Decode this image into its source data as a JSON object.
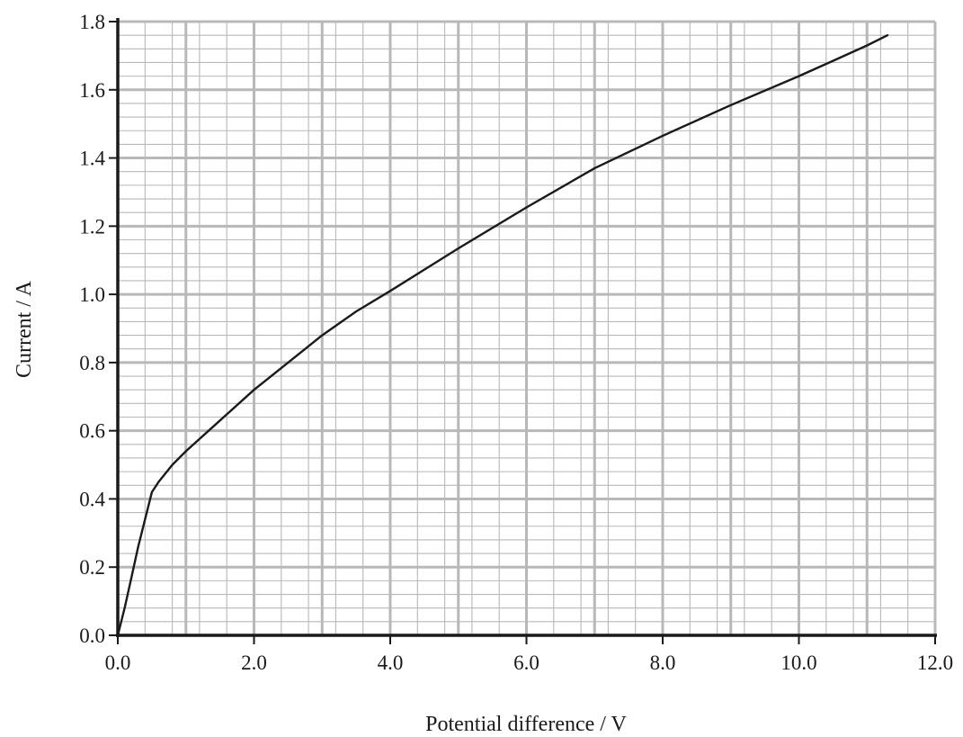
{
  "chart_data": {
    "type": "line",
    "title": "",
    "xlabel": "Potential difference / V",
    "ylabel": "Current / A",
    "xlim": [
      0,
      12
    ],
    "ylim": [
      0,
      1.8
    ],
    "x_ticks": [
      0,
      2,
      4,
      6,
      8,
      10,
      12
    ],
    "x_tick_labels": [
      "0.0",
      "2.0",
      "4.0",
      "6.0",
      "8.0",
      "10.0",
      "12.0"
    ],
    "y_ticks": [
      0,
      0.2,
      0.4,
      0.6,
      0.8,
      1.0,
      1.2,
      1.4,
      1.6,
      1.8
    ],
    "y_tick_labels": [
      "0.0",
      "0.2",
      "0.4",
      "0.6",
      "0.8",
      "1.0",
      "1.2",
      "1.4",
      "1.6",
      "1.8"
    ],
    "grid": {
      "major": true,
      "minor": true,
      "minor_x_step": 0.4,
      "minor_y_step": 0.04
    },
    "legend": "none",
    "colors": {
      "line": "#1a1a1a",
      "grid": "#b8b8b8",
      "axes": "#1a1a1a"
    },
    "series": [
      {
        "x": [
          0.0,
          0.1,
          0.2,
          0.3,
          0.4,
          0.5,
          0.6,
          0.8,
          1.0,
          1.5,
          2.0,
          2.5,
          3.0,
          3.5,
          4.0,
          5.0,
          6.0,
          7.0,
          8.0,
          9.0,
          10.0,
          10.5,
          11.0,
          11.3
        ],
        "y": [
          0.0,
          0.08,
          0.17,
          0.26,
          0.34,
          0.42,
          0.45,
          0.5,
          0.54,
          0.63,
          0.72,
          0.8,
          0.88,
          0.95,
          1.01,
          1.135,
          1.255,
          1.37,
          1.465,
          1.555,
          1.64,
          1.685,
          1.73,
          1.76
        ]
      }
    ]
  }
}
